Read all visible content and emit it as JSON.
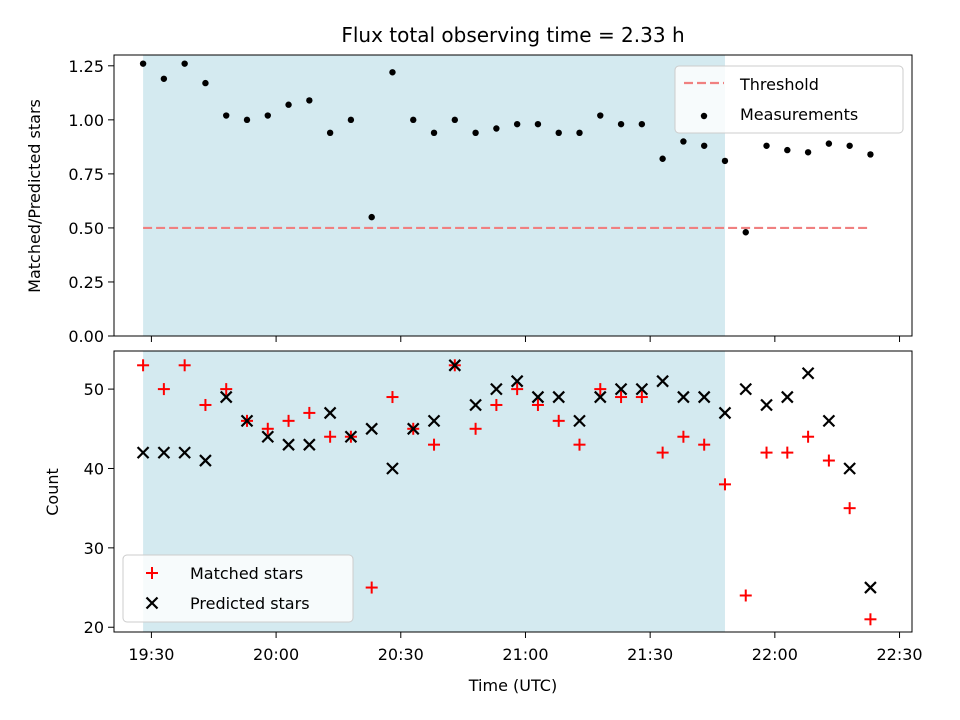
{
  "chart_data": [
    {
      "type": "scatter",
      "title": "Flux total observing time = 2.33 h",
      "xlabel": "",
      "ylabel": "Matched/Predicted stars",
      "ylim": [
        0,
        1.3
      ],
      "yticks": [
        "0.00",
        "0.25",
        "0.50",
        "0.75",
        "1.00",
        "1.25"
      ],
      "xlim": [
        "19:21",
        "22:33"
      ],
      "shaded_interval": [
        "19:28",
        "21:48"
      ],
      "shaded_color": "#d4eaf0",
      "threshold": {
        "name": "Threshold",
        "value": 0.5,
        "x": [
          "19:28",
          "22:23"
        ],
        "color": "#f08080"
      },
      "legend": {
        "placement": "top-right",
        "entries": [
          "Threshold",
          "Measurements"
        ]
      },
      "series": [
        {
          "name": "Measurements",
          "color": "#000000",
          "x": [
            "19:28",
            "19:33",
            "19:38",
            "19:43",
            "19:48",
            "19:53",
            "19:58",
            "20:03",
            "20:08",
            "20:13",
            "20:18",
            "20:23",
            "20:28",
            "20:33",
            "20:38",
            "20:43",
            "20:48",
            "20:53",
            "20:58",
            "21:03",
            "21:08",
            "21:13",
            "21:18",
            "21:23",
            "21:28",
            "21:33",
            "21:38",
            "21:43",
            "21:48",
            "21:53",
            "21:58",
            "22:03",
            "22:08",
            "22:13",
            "22:18",
            "22:23"
          ],
          "y": [
            1.26,
            1.19,
            1.26,
            1.17,
            1.02,
            1.0,
            1.02,
            1.07,
            1.09,
            0.94,
            1.0,
            0.55,
            1.22,
            1.0,
            0.94,
            1.0,
            0.94,
            0.96,
            0.98,
            0.98,
            0.94,
            0.94,
            1.02,
            0.98,
            0.98,
            0.82,
            0.9,
            0.88,
            0.81,
            0.48,
            0.88,
            0.86,
            0.85,
            0.89,
            0.88,
            0.84
          ]
        }
      ]
    },
    {
      "type": "scatter",
      "title": "",
      "xlabel": "Time (UTC)",
      "ylabel": "Count",
      "ylim": [
        19.4,
        54.8
      ],
      "yticks": [
        "20",
        "30",
        "40",
        "50"
      ],
      "xticks": [
        "19:30",
        "20:00",
        "20:30",
        "21:00",
        "21:30",
        "22:00",
        "22:30"
      ],
      "xlim": [
        "19:21",
        "22:33"
      ],
      "legend": {
        "placement": "bottom-left",
        "entries": [
          "Matched stars",
          "Predicted stars"
        ]
      },
      "series": [
        {
          "name": "Matched stars",
          "marker": "plus",
          "color": "#ff0000",
          "x": [
            "19:28",
            "19:33",
            "19:38",
            "19:43",
            "19:48",
            "19:53",
            "19:58",
            "20:03",
            "20:08",
            "20:13",
            "20:18",
            "20:23",
            "20:28",
            "20:33",
            "20:38",
            "20:43",
            "20:48",
            "20:53",
            "20:58",
            "21:03",
            "21:08",
            "21:13",
            "21:18",
            "21:23",
            "21:28",
            "21:33",
            "21:38",
            "21:43",
            "21:48",
            "21:53",
            "21:58",
            "22:03",
            "22:08",
            "22:13",
            "22:18",
            "22:23"
          ],
          "y": [
            53,
            50,
            53,
            48,
            50,
            46,
            45,
            46,
            47,
            44,
            44,
            25,
            49,
            45,
            43,
            53,
            45,
            48,
            50,
            48,
            46,
            43,
            50,
            49,
            49,
            42,
            44,
            43,
            38,
            24,
            42,
            42,
            44,
            41,
            35,
            21
          ]
        },
        {
          "name": "Predicted stars",
          "marker": "x",
          "color": "#000000",
          "x": [
            "19:28",
            "19:33",
            "19:38",
            "19:43",
            "19:48",
            "19:53",
            "19:58",
            "20:03",
            "20:08",
            "20:13",
            "20:18",
            "20:23",
            "20:28",
            "20:33",
            "20:38",
            "20:43",
            "20:48",
            "20:53",
            "20:58",
            "21:03",
            "21:08",
            "21:13",
            "21:18",
            "21:23",
            "21:28",
            "21:33",
            "21:38",
            "21:43",
            "21:48",
            "21:53",
            "21:58",
            "22:03",
            "22:08",
            "22:13",
            "22:18",
            "22:23"
          ],
          "y": [
            42,
            42,
            42,
            41,
            49,
            46,
            44,
            43,
            43,
            47,
            44,
            45,
            40,
            45,
            46,
            53,
            48,
            50,
            51,
            49,
            49,
            46,
            49,
            50,
            50,
            51,
            49,
            49,
            47,
            50,
            48,
            49,
            52,
            46,
            40,
            25
          ]
        }
      ]
    }
  ]
}
